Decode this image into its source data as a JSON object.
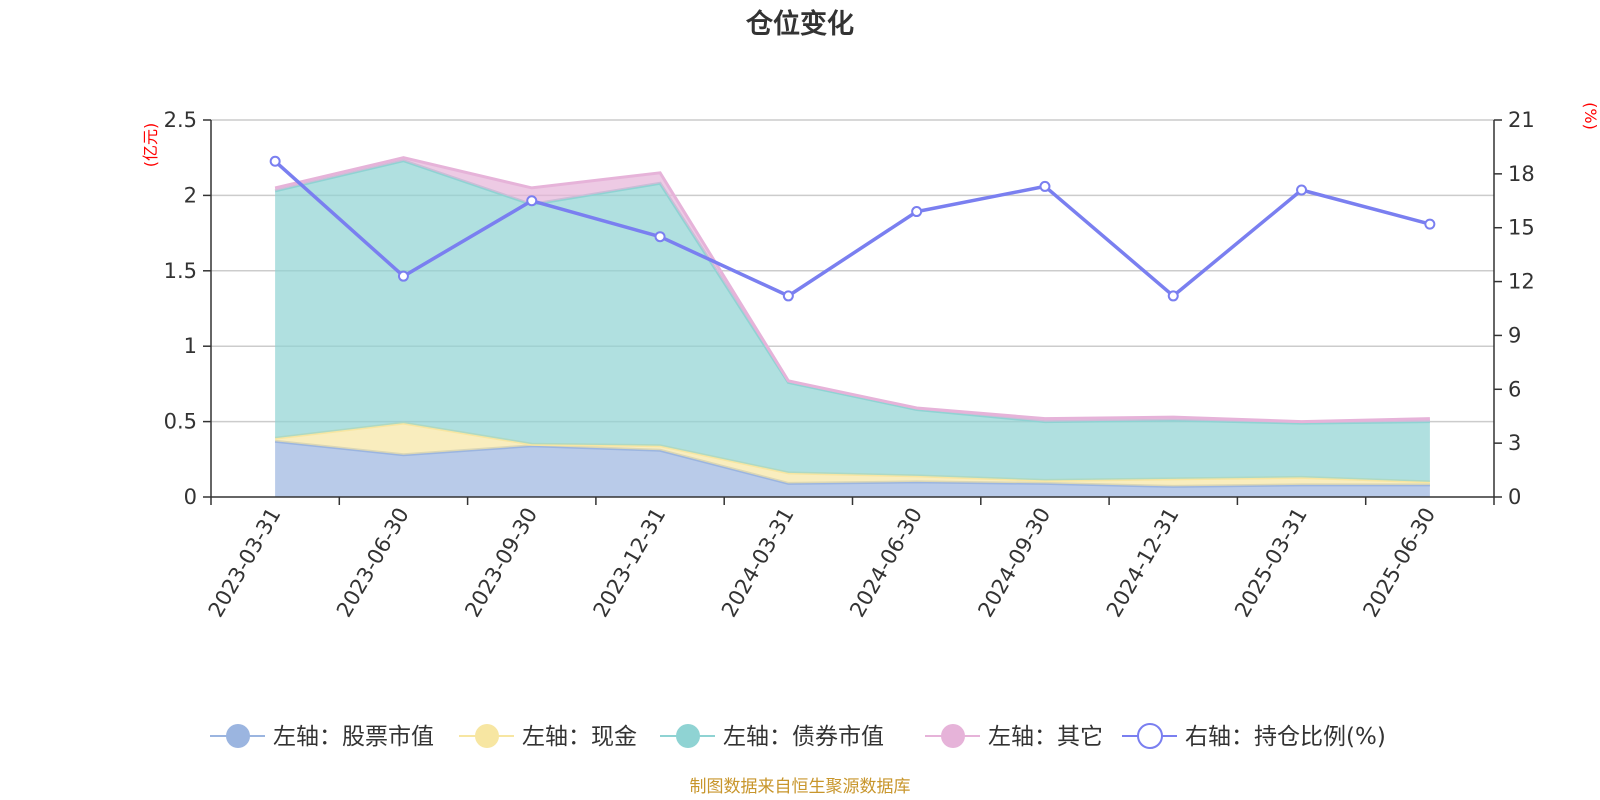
{
  "chart_data": {
    "type": "area",
    "title": "仓位变化",
    "left_unit": "(亿元)",
    "right_unit": "(%)",
    "categories": [
      "2023-03-31",
      "2023-06-30",
      "2023-09-30",
      "2023-12-31",
      "2024-03-31",
      "2024-06-30",
      "2024-09-30",
      "2024-12-31",
      "2025-03-31",
      "2025-06-30"
    ],
    "left_axis": {
      "min": 0,
      "max": 2.5,
      "ticks": [
        "0",
        "0.5",
        "1",
        "1.5",
        "2",
        "2.5"
      ]
    },
    "right_axis": {
      "min": 0,
      "max": 21,
      "ticks": [
        "0",
        "3",
        "6",
        "9",
        "12",
        "15",
        "18",
        "21"
      ]
    },
    "grid": true,
    "legend_position": "bottom",
    "series": [
      {
        "name": "左轴：股票市值",
        "axis": "left",
        "kind": "stacked-area",
        "color": "#9bb5e0",
        "values": [
          0.37,
          0.28,
          0.34,
          0.31,
          0.09,
          0.1,
          0.09,
          0.07,
          0.08,
          0.08
        ]
      },
      {
        "name": "左轴：现金",
        "axis": "left",
        "kind": "stacked-area",
        "color": "#f7e6a2",
        "values": [
          0.02,
          0.21,
          0.01,
          0.03,
          0.07,
          0.04,
          0.02,
          0.05,
          0.05,
          0.02
        ]
      },
      {
        "name": "左轴：债券市值",
        "axis": "left",
        "kind": "stacked-area",
        "color": "#8fd3d3",
        "values": [
          1.64,
          1.74,
          1.59,
          1.74,
          0.6,
          0.44,
          0.39,
          0.39,
          0.36,
          0.4
        ]
      },
      {
        "name": "左轴：其它",
        "axis": "left",
        "kind": "stacked-area",
        "color": "#e6b3d9",
        "values": [
          0.02,
          0.02,
          0.11,
          0.07,
          0.01,
          0.01,
          0.02,
          0.02,
          0.01,
          0.02
        ]
      },
      {
        "name": "右轴：持仓比例(%)",
        "axis": "right",
        "kind": "line",
        "color": "#7a7ff0",
        "values": [
          18.7,
          12.3,
          16.5,
          14.5,
          11.2,
          15.9,
          17.3,
          11.2,
          17.1,
          15.2
        ]
      }
    ],
    "source_note": "制图数据来自恒生聚源数据库"
  }
}
